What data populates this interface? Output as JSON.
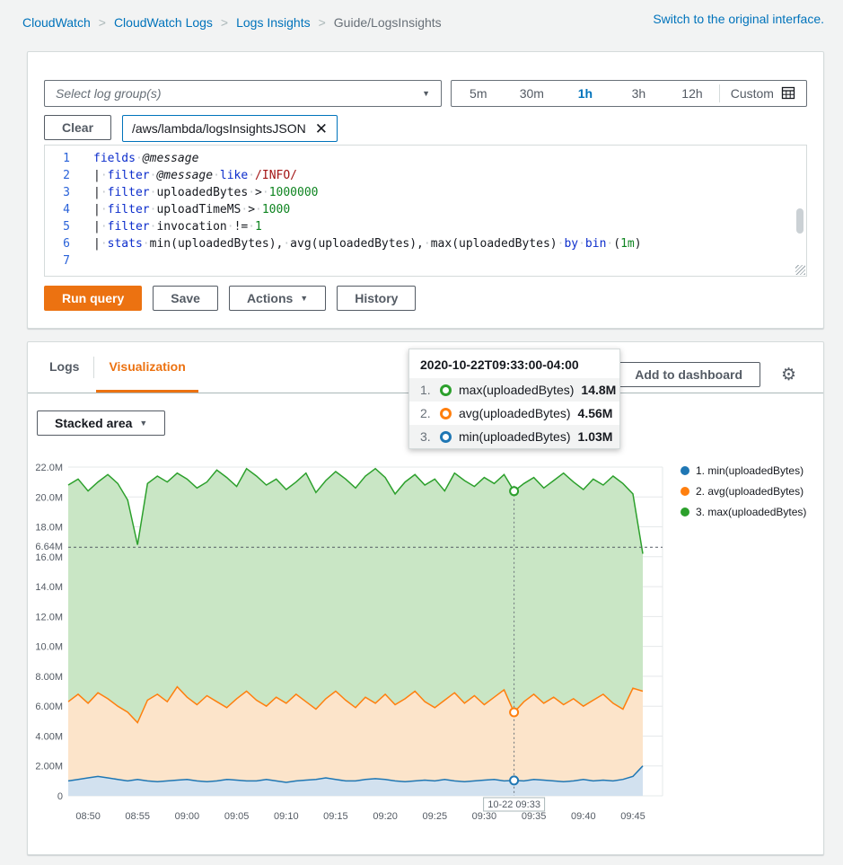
{
  "breadcrumb": {
    "items": [
      {
        "label": "CloudWatch",
        "link": true
      },
      {
        "label": "CloudWatch Logs",
        "link": true
      },
      {
        "label": "Logs Insights",
        "link": true
      },
      {
        "label": "Guide/LogsInsights",
        "link": false
      }
    ],
    "switch_link": "Switch to the original interface."
  },
  "query_panel": {
    "log_group_select": {
      "placeholder": "Select log group(s)"
    },
    "time_range": {
      "options": [
        "5m",
        "30m",
        "1h",
        "3h",
        "12h"
      ],
      "selected": "1h",
      "custom_label": "Custom"
    },
    "clear_button": "Clear",
    "log_group_chip": "/aws/lambda/logsInsightsJSON",
    "editor_lines": [
      {
        "n": "1",
        "segs": [
          [
            "kw",
            "fields"
          ],
          [
            "sp"
          ],
          [
            "var",
            "@message"
          ]
        ]
      },
      {
        "n": "2",
        "segs": [
          [
            "op",
            "|"
          ],
          [
            "sp"
          ],
          [
            "kw",
            "filter"
          ],
          [
            "sp"
          ],
          [
            "var",
            "@message"
          ],
          [
            "sp"
          ],
          [
            "kw",
            "like"
          ],
          [
            "sp"
          ],
          [
            "re",
            "/INFO/"
          ]
        ]
      },
      {
        "n": "3",
        "segs": [
          [
            "op",
            "|"
          ],
          [
            "sp"
          ],
          [
            "kw",
            "filter"
          ],
          [
            "sp"
          ],
          [
            "id",
            "uploadedBytes"
          ],
          [
            "sp"
          ],
          [
            "op",
            ">"
          ],
          [
            "sp"
          ],
          [
            "num",
            "1000000"
          ]
        ]
      },
      {
        "n": "4",
        "segs": [
          [
            "op",
            "|"
          ],
          [
            "sp"
          ],
          [
            "kw",
            "filter"
          ],
          [
            "sp"
          ],
          [
            "id",
            "uploadTimeMS"
          ],
          [
            "sp"
          ],
          [
            "op",
            ">"
          ],
          [
            "sp"
          ],
          [
            "num",
            "1000"
          ]
        ]
      },
      {
        "n": "5",
        "segs": [
          [
            "op",
            "|"
          ],
          [
            "sp"
          ],
          [
            "kw",
            "filter"
          ],
          [
            "sp"
          ],
          [
            "id",
            "invocation"
          ],
          [
            "sp"
          ],
          [
            "op",
            "!="
          ],
          [
            "sp"
          ],
          [
            "num",
            "1"
          ]
        ]
      },
      {
        "n": "6",
        "segs": [
          [
            "op",
            "|"
          ],
          [
            "sp"
          ],
          [
            "kw",
            "stats"
          ],
          [
            "sp"
          ],
          [
            "id",
            "min"
          ],
          [
            "pt",
            "("
          ],
          [
            "id",
            "uploadedBytes"
          ],
          [
            "pt",
            "),"
          ],
          [
            "sp"
          ],
          [
            "id",
            "avg"
          ],
          [
            "pt",
            "("
          ],
          [
            "id",
            "uploadedBytes"
          ],
          [
            "pt",
            "),"
          ],
          [
            "sp"
          ],
          [
            "id",
            "max"
          ],
          [
            "pt",
            "("
          ],
          [
            "id",
            "uploadedBytes"
          ],
          [
            "pt",
            ")"
          ],
          [
            "sp"
          ],
          [
            "kw",
            "by"
          ],
          [
            "sp"
          ],
          [
            "kw",
            "bin"
          ],
          [
            "sp"
          ],
          [
            "pt",
            "("
          ],
          [
            "num",
            "1m"
          ],
          [
            "pt",
            ")"
          ]
        ]
      },
      {
        "n": "7",
        "segs": []
      }
    ],
    "buttons": {
      "run": "Run query",
      "save": "Save",
      "actions": "Actions",
      "history": "History"
    }
  },
  "viz_panel": {
    "tabs": [
      {
        "label": "Logs",
        "active": false
      },
      {
        "label": "Visualization",
        "active": true
      }
    ],
    "add_to_dashboard": "Add to dashboard",
    "chart_type_button": "Stacked area",
    "tooltip": {
      "title": "2020-10-22T09:33:00-04:00",
      "rows": [
        {
          "num": "1.",
          "label": "max(uploadedBytes)",
          "value": "14.8M",
          "color": "#2ca02c"
        },
        {
          "num": "2.",
          "label": "avg(uploadedBytes)",
          "value": "4.56M",
          "color": "#ff7f0e"
        },
        {
          "num": "3.",
          "label": "min(uploadedBytes)",
          "value": "1.03M",
          "color": "#1f77b4"
        }
      ]
    }
  },
  "chart_data": {
    "type": "area",
    "stacked": true,
    "unit": "M (millions of bytes)",
    "x_start": "08:48",
    "x_interval_minutes": 1,
    "ylim": [
      0,
      22
    ],
    "y_ticks": [
      {
        "v": 0,
        "label": "0"
      },
      {
        "v": 2,
        "label": "2.00M"
      },
      {
        "v": 4,
        "label": "4.00M"
      },
      {
        "v": 6,
        "label": "6.00M"
      },
      {
        "v": 8,
        "label": "8.00M"
      },
      {
        "v": 10,
        "label": "10.0M"
      },
      {
        "v": 12,
        "label": "12.0M"
      },
      {
        "v": 14,
        "label": "14.0M"
      },
      {
        "v": 16,
        "label": "16.0M"
      },
      {
        "v": 18,
        "label": "18.0M"
      },
      {
        "v": 20,
        "label": "20.0M"
      },
      {
        "v": 22,
        "label": "22.0M"
      }
    ],
    "x_ticks": [
      {
        "i": 2,
        "label": "08:50"
      },
      {
        "i": 7,
        "label": "08:55"
      },
      {
        "i": 12,
        "label": "09:00"
      },
      {
        "i": 17,
        "label": "09:05"
      },
      {
        "i": 22,
        "label": "09:10"
      },
      {
        "i": 27,
        "label": "09:15"
      },
      {
        "i": 32,
        "label": "09:20"
      },
      {
        "i": 37,
        "label": "09:25"
      },
      {
        "i": 42,
        "label": "09:30"
      },
      {
        "i": 47,
        "label": "09:35"
      },
      {
        "i": 52,
        "label": "09:40"
      },
      {
        "i": 57,
        "label": "09:45"
      }
    ],
    "threshold": {
      "value": 16.64,
      "label": "16.64M"
    },
    "cursor": {
      "index": 45,
      "label": "10-22 09:33",
      "time": "2020-10-22T09:33:00-04:00"
    },
    "series": [
      {
        "name": "min(uploadedBytes)",
        "color": "#1f77b4",
        "fill": "#d2e1ef",
        "values": [
          1.0,
          1.1,
          1.2,
          1.3,
          1.2,
          1.1,
          1.0,
          1.1,
          1.0,
          0.95,
          1.0,
          1.05,
          1.1,
          1.0,
          0.95,
          1.0,
          1.1,
          1.05,
          1.0,
          1.0,
          1.1,
          1.0,
          0.9,
          1.0,
          1.05,
          1.1,
          1.2,
          1.1,
          1.0,
          1.0,
          1.1,
          1.15,
          1.1,
          1.0,
          0.95,
          1.0,
          1.05,
          1.0,
          1.1,
          1.0,
          0.95,
          1.0,
          1.05,
          1.1,
          1.0,
          1.03,
          1.0,
          1.1,
          1.05,
          1.0,
          0.95,
          1.0,
          1.1,
          1.0,
          1.05,
          1.0,
          1.1,
          1.3,
          2.0
        ]
      },
      {
        "name": "avg(uploadedBytes)",
        "color": "#ff7f0e",
        "fill": "#fce4ca",
        "values": [
          5.3,
          5.7,
          5.0,
          5.6,
          5.3,
          4.9,
          4.6,
          3.8,
          5.4,
          5.85,
          5.3,
          6.25,
          5.5,
          5.1,
          5.75,
          5.3,
          4.8,
          5.45,
          6.0,
          5.4,
          4.9,
          5.6,
          5.3,
          5.8,
          5.25,
          4.7,
          5.3,
          5.9,
          5.4,
          4.9,
          5.5,
          5.05,
          5.7,
          5.1,
          5.55,
          6.0,
          5.25,
          4.9,
          5.3,
          5.9,
          5.25,
          5.7,
          5.05,
          5.5,
          6.1,
          4.56,
          5.3,
          5.7,
          5.15,
          5.6,
          5.15,
          5.5,
          4.9,
          5.4,
          5.75,
          5.2,
          4.7,
          5.9,
          5.0
        ]
      },
      {
        "name": "max(uploadedBytes)",
        "color": "#2ca02c",
        "fill": "#c9e6c5",
        "values": [
          14.5,
          14.4,
          14.2,
          14.1,
          15.0,
          14.9,
          14.2,
          11.9,
          14.5,
          14.6,
          14.7,
          14.3,
          14.6,
          14.5,
          14.3,
          15.5,
          15.4,
          14.2,
          14.9,
          15.0,
          14.8,
          14.6,
          14.3,
          14.2,
          15.3,
          14.5,
          14.6,
          14.7,
          14.8,
          14.7,
          14.8,
          15.7,
          14.5,
          14.1,
          14.5,
          14.5,
          14.5,
          15.3,
          14.0,
          14.7,
          14.9,
          14.0,
          15.2,
          14.3,
          14.4,
          14.8,
          14.6,
          14.5,
          14.4,
          14.5,
          15.5,
          14.5,
          14.5,
          14.8,
          14.0,
          15.2,
          15.1,
          13.0,
          9.2
        ]
      }
    ],
    "legend": [
      {
        "label": "1. min(uploadedBytes)",
        "color": "#1f77b4"
      },
      {
        "label": "2. avg(uploadedBytes)",
        "color": "#ff7f0e"
      },
      {
        "label": "3. max(uploadedBytes)",
        "color": "#2ca02c"
      }
    ]
  }
}
